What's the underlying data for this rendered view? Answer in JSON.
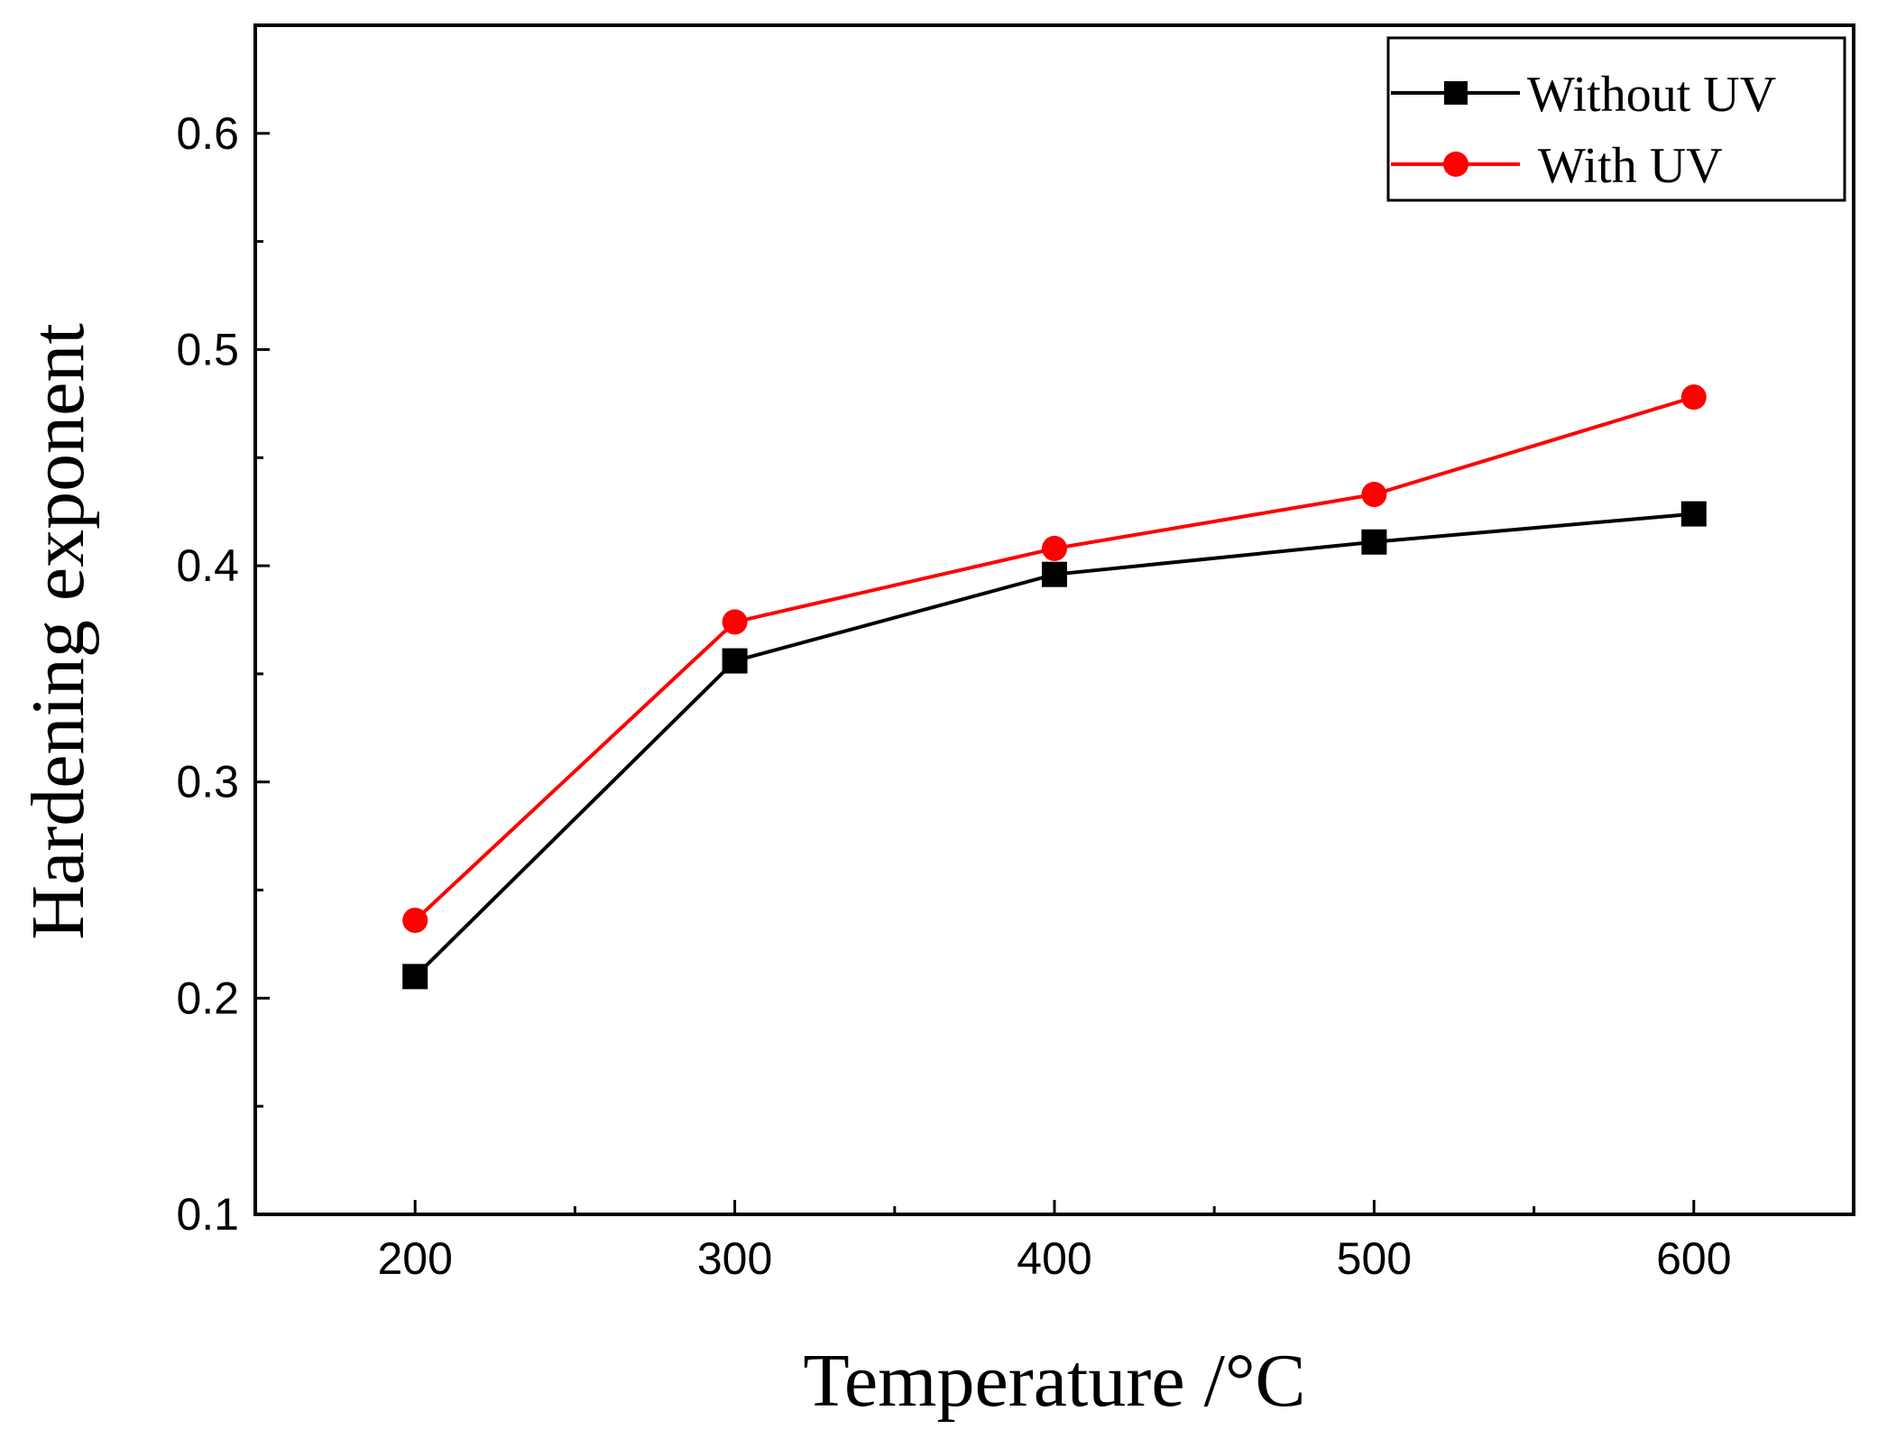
{
  "chart_data": {
    "type": "line",
    "title": "",
    "xlabel": "Temperature /°C",
    "ylabel": "Hardening exponent",
    "x": [
      200,
      300,
      400,
      500,
      600
    ],
    "xlim": [
      150,
      650
    ],
    "ylim": [
      0.1,
      0.65
    ],
    "xticks": [
      200,
      300,
      400,
      500,
      600
    ],
    "xtick_labels": [
      "200",
      "300",
      "400",
      "500",
      "600"
    ],
    "yticks": [
      0.1,
      0.2,
      0.3,
      0.4,
      0.5,
      0.6
    ],
    "ytick_labels": [
      "0.1",
      "0.2",
      "0.3",
      "0.4",
      "0.5",
      "0.6"
    ],
    "grid": false,
    "legend_position": "top-right",
    "series": [
      {
        "name": "Without UV",
        "color": "#000000",
        "marker": "square",
        "values": [
          0.21,
          0.356,
          0.396,
          0.411,
          0.424
        ]
      },
      {
        "name": "With UV",
        "color": "#ff0000",
        "marker": "circle",
        "values": [
          0.236,
          0.374,
          0.408,
          0.433,
          0.478
        ]
      }
    ]
  }
}
